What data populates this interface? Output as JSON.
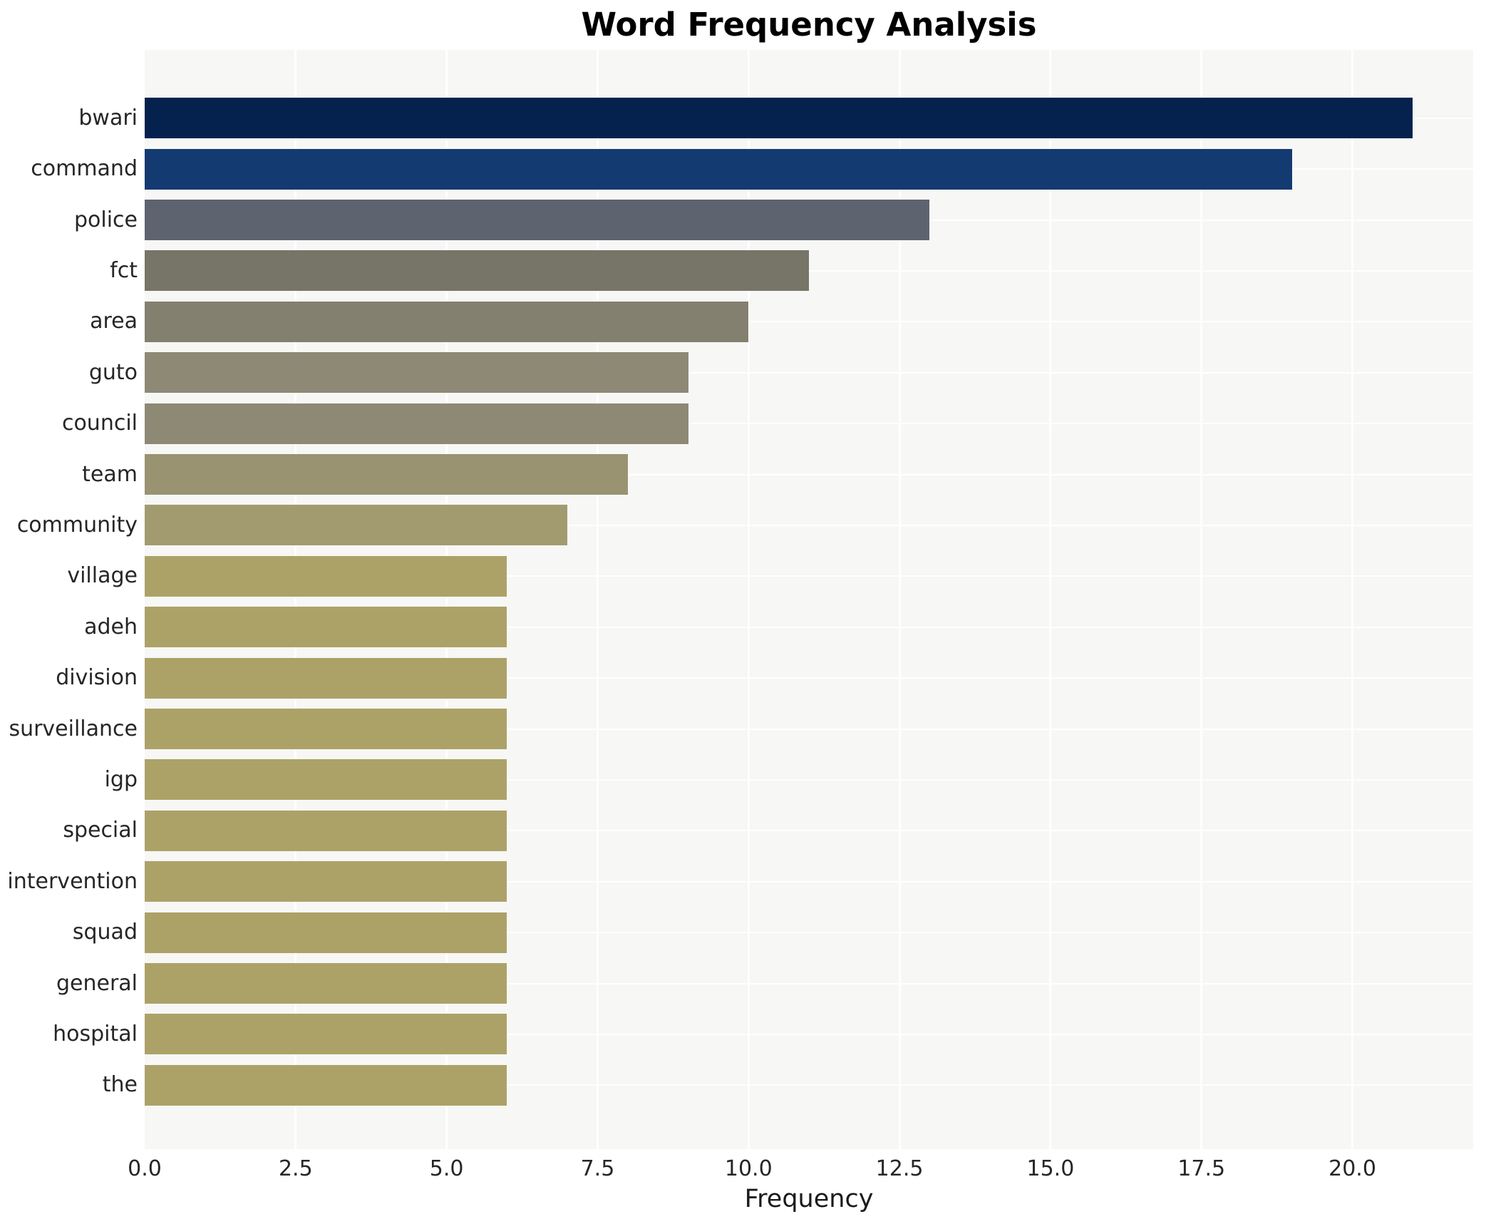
{
  "figure": {
    "background": "#ffffff",
    "plot_background": "#f7f7f5",
    "grid_color": "#ffffff"
  },
  "chart_data": {
    "type": "bar",
    "orientation": "horizontal",
    "title": "Word Frequency Analysis",
    "xlabel": "Frequency",
    "ylabel": "",
    "categories": [
      "bwari",
      "command",
      "police",
      "fct",
      "area",
      "guto",
      "council",
      "team",
      "community",
      "village",
      "adeh",
      "division",
      "surveillance",
      "igp",
      "special",
      "intervention",
      "squad",
      "general",
      "hospital",
      "the"
    ],
    "values": [
      21,
      19,
      13,
      11,
      10,
      9,
      9,
      8,
      7,
      6,
      6,
      6,
      6,
      6,
      6,
      6,
      6,
      6,
      6,
      6
    ],
    "bar_colors": [
      "#04224d",
      "#143a72",
      "#5e6370",
      "#777468",
      "#838070",
      "#8e8975",
      "#8e8975",
      "#999371",
      "#a29b70",
      "#aca268",
      "#aca268",
      "#aca268",
      "#aca268",
      "#aca268",
      "#aca268",
      "#aca268",
      "#aca268",
      "#aca268",
      "#aca268",
      "#aca268"
    ],
    "xlim": [
      0,
      22
    ],
    "xticks": [
      0,
      2.5,
      5,
      7.5,
      10,
      12.5,
      15,
      17.5,
      20
    ],
    "xtick_labels": [
      "0.0",
      "2.5",
      "5.0",
      "7.5",
      "10.0",
      "12.5",
      "15.0",
      "17.5",
      "20.0"
    ],
    "grid": true,
    "grid_axis": "both",
    "legend": false
  }
}
